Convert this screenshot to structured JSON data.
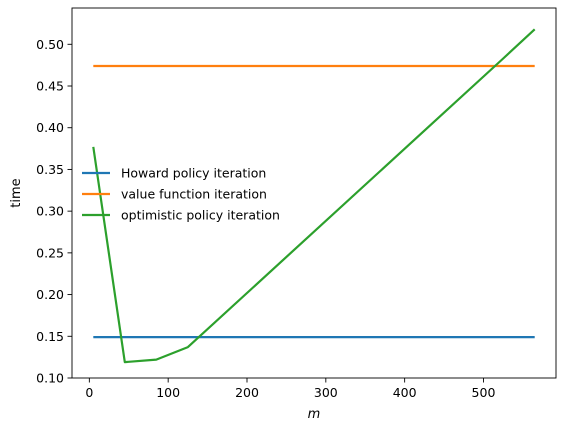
{
  "chart_data": {
    "type": "line",
    "xlabel": "m",
    "ylabel": "time",
    "xlim": [
      -22,
      592
    ],
    "ylim": [
      0.1,
      0.5435
    ],
    "xticks": [
      0,
      100,
      200,
      300,
      400,
      500
    ],
    "yticks": [
      0.1,
      0.15,
      0.2,
      0.25,
      0.3,
      0.35,
      0.4,
      0.45,
      0.5
    ],
    "grid": false,
    "legend_position": "center-left",
    "series": [
      {
        "name": "Howard policy iteration",
        "color": "#1f77b4",
        "x": [
          5,
          565
        ],
        "y": [
          0.149,
          0.149
        ]
      },
      {
        "name": "value function iteration",
        "color": "#ff7f0e",
        "x": [
          5,
          565
        ],
        "y": [
          0.474,
          0.474
        ]
      },
      {
        "name": "optimistic policy iteration",
        "color": "#2ca02c",
        "x": [
          5,
          45,
          85,
          125,
          525,
          565
        ],
        "y": [
          0.377,
          0.119,
          0.122,
          0.137,
          0.483,
          0.518
        ]
      }
    ]
  }
}
